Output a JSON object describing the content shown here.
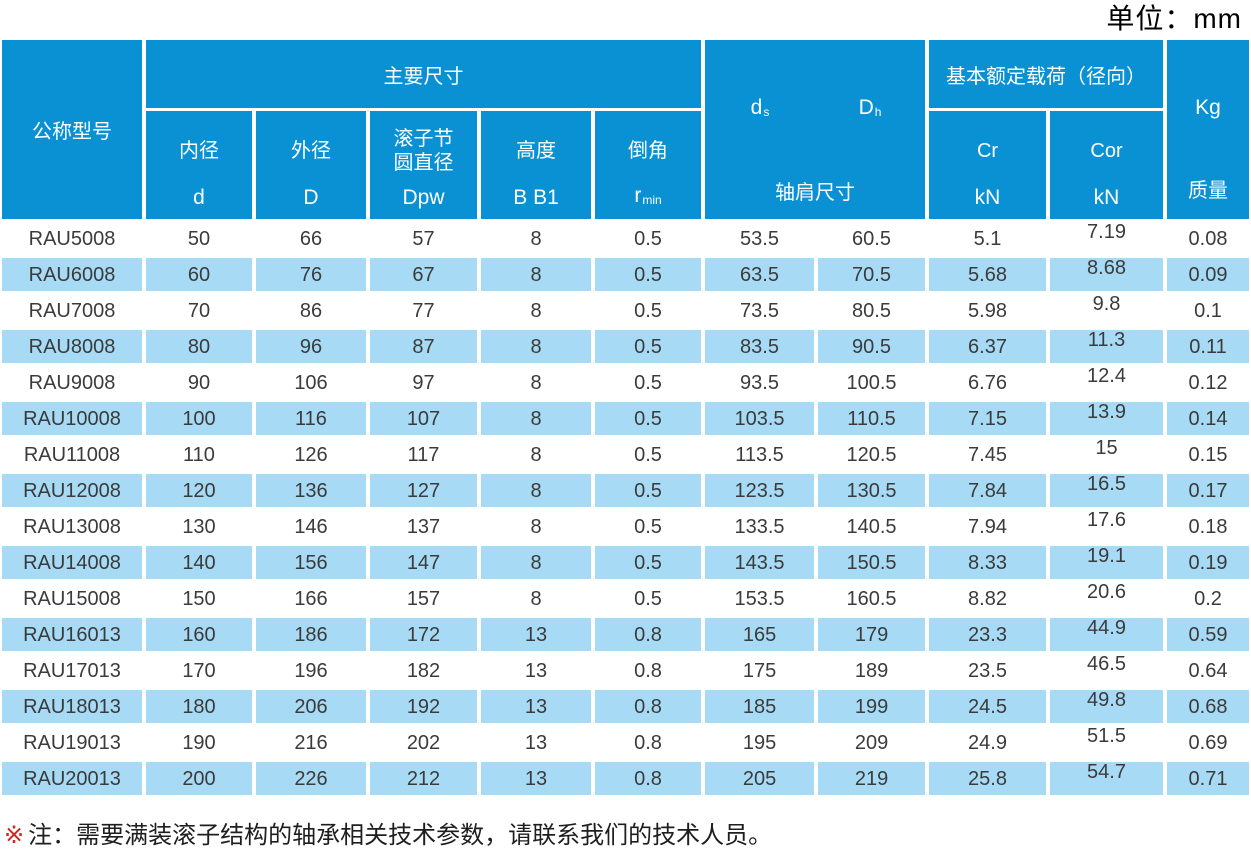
{
  "page": {
    "unit_label": "单位：mm",
    "note_marker": "※",
    "note_text": "注：需要满装滚子结构的轴承相关技术参数，请联系我们的技术人员。"
  },
  "colors": {
    "header_blue": "#0991d3",
    "row_blue": "#a6daf5",
    "row_white": "#ffffff",
    "text_dark": "#3b3b3b",
    "note_red": "#d3241e"
  },
  "table": {
    "header": {
      "model_label": "公称型号",
      "groups": {
        "main_dims": "主要尺寸",
        "shoulder": "轴肩尺寸",
        "load": "基本额定载荷（径向）",
        "mass": "质量"
      },
      "sub_columns": {
        "bore": {
          "name": "内径",
          "symbol": "d"
        },
        "outer": {
          "name": "外径",
          "symbol": "D"
        },
        "roller_pitch": {
          "name_line1": "滚子节",
          "name_line2": "圆直径",
          "symbol": "Dpw"
        },
        "height": {
          "name": "高度",
          "symbol": "B B1"
        },
        "chamfer": {
          "name": "倒角",
          "symbol_base": "r",
          "symbol_sub": "min"
        }
      },
      "shoulder_symbols": {
        "ds": {
          "base": "d",
          "sub": "s"
        },
        "dh": {
          "base": "D",
          "sub": "h"
        }
      },
      "load_columns": {
        "cr": {
          "name": "Cr",
          "unit": "kN"
        },
        "cor": {
          "name": "Cor",
          "unit": "kN"
        }
      },
      "mass_unit": "Kg"
    },
    "column_keys": [
      "model",
      "d",
      "D",
      "Dpw",
      "B-B1",
      "r-min",
      "ds",
      "Dh",
      "Cr",
      "Cor",
      "Kg"
    ],
    "rows": [
      [
        "RAU5008",
        "50",
        "66",
        "57",
        "8",
        "0.5",
        "53.5",
        "60.5",
        "5.1",
        "7.19",
        "0.08"
      ],
      [
        "RAU6008",
        "60",
        "76",
        "67",
        "8",
        "0.5",
        "63.5",
        "70.5",
        "5.68",
        "8.68",
        "0.09"
      ],
      [
        "RAU7008",
        "70",
        "86",
        "77",
        "8",
        "0.5",
        "73.5",
        "80.5",
        "5.98",
        "9.8",
        "0.1"
      ],
      [
        "RAU8008",
        "80",
        "96",
        "87",
        "8",
        "0.5",
        "83.5",
        "90.5",
        "6.37",
        "11.3",
        "0.11"
      ],
      [
        "RAU9008",
        "90",
        "106",
        "97",
        "8",
        "0.5",
        "93.5",
        "100.5",
        "6.76",
        "12.4",
        "0.12"
      ],
      [
        "RAU10008",
        "100",
        "116",
        "107",
        "8",
        "0.5",
        "103.5",
        "110.5",
        "7.15",
        "13.9",
        "0.14"
      ],
      [
        "RAU11008",
        "110",
        "126",
        "117",
        "8",
        "0.5",
        "113.5",
        "120.5",
        "7.45",
        "15",
        "0.15"
      ],
      [
        "RAU12008",
        "120",
        "136",
        "127",
        "8",
        "0.5",
        "123.5",
        "130.5",
        "7.84",
        "16.5",
        "0.17"
      ],
      [
        "RAU13008",
        "130",
        "146",
        "137",
        "8",
        "0.5",
        "133.5",
        "140.5",
        "7.94",
        "17.6",
        "0.18"
      ],
      [
        "RAU14008",
        "140",
        "156",
        "147",
        "8",
        "0.5",
        "143.5",
        "150.5",
        "8.33",
        "19.1",
        "0.19"
      ],
      [
        "RAU15008",
        "150",
        "166",
        "157",
        "8",
        "0.5",
        "153.5",
        "160.5",
        "8.82",
        "20.6",
        "0.2"
      ],
      [
        "RAU16013",
        "160",
        "186",
        "172",
        "13",
        "0.8",
        "165",
        "179",
        "23.3",
        "44.9",
        "0.59"
      ],
      [
        "RAU17013",
        "170",
        "196",
        "182",
        "13",
        "0.8",
        "175",
        "189",
        "23.5",
        "46.5",
        "0.64"
      ],
      [
        "RAU18013",
        "180",
        "206",
        "192",
        "13",
        "0.8",
        "185",
        "199",
        "24.5",
        "49.8",
        "0.68"
      ],
      [
        "RAU19013",
        "190",
        "216",
        "202",
        "13",
        "0.8",
        "195",
        "209",
        "24.9",
        "51.5",
        "0.69"
      ],
      [
        "RAU20013",
        "200",
        "226",
        "212",
        "13",
        "0.8",
        "205",
        "219",
        "25.8",
        "54.7",
        "0.71"
      ]
    ]
  }
}
